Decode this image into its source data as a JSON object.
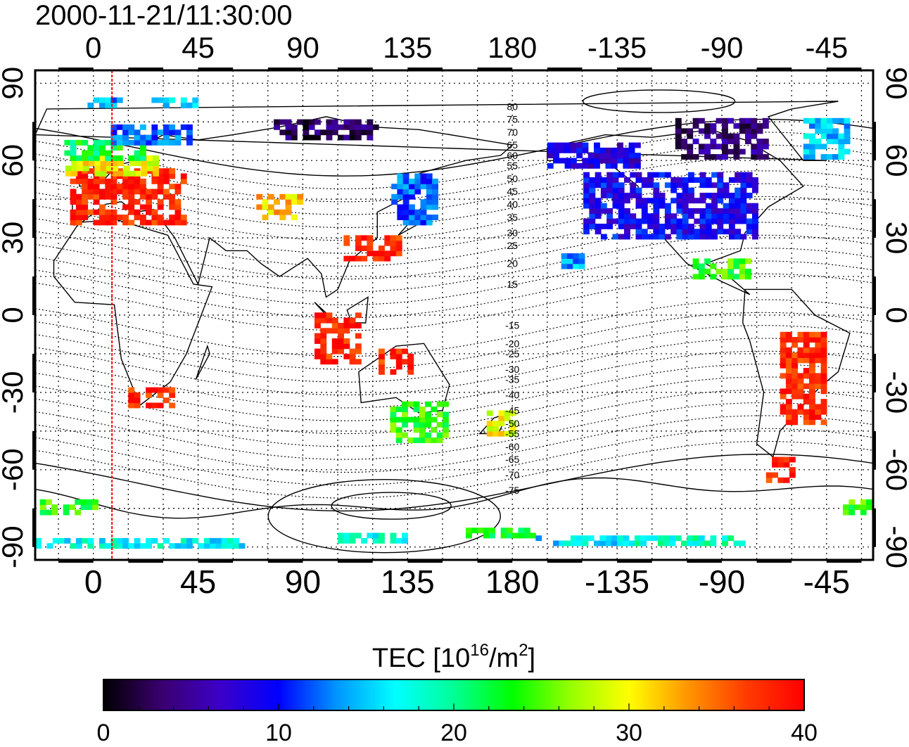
{
  "title": "2000-11-21/11:30:00",
  "map": {
    "lon_ticks": [
      "0",
      "45",
      "90",
      "135",
      "180",
      "-135",
      "-90",
      "-45"
    ],
    "lat_ticks": [
      "90",
      "60",
      "30",
      "0",
      "-30",
      "-60",
      "-90"
    ],
    "lon_range": [
      -25,
      335
    ],
    "lat_range": [
      -95,
      95
    ],
    "meridian_marker_lon": 8,
    "meridian_marker_color": "#ff0000",
    "contour_labels": [
      {
        "text": "80",
        "lat": 81
      },
      {
        "text": "75",
        "lat": 76
      },
      {
        "text": "70",
        "lat": 71
      },
      {
        "text": "65",
        "lat": 66
      },
      {
        "text": "60",
        "lat": 62
      },
      {
        "text": "55",
        "lat": 58
      },
      {
        "text": "50",
        "lat": 53
      },
      {
        "text": "45",
        "lat": 48
      },
      {
        "text": "40",
        "lat": 43
      },
      {
        "text": "35",
        "lat": 38
      },
      {
        "text": "30",
        "lat": 32
      },
      {
        "text": "25",
        "lat": 27
      },
      {
        "text": "20",
        "lat": 20
      },
      {
        "text": "15",
        "lat": 12
      },
      {
        "text": "-15",
        "lat": -4
      },
      {
        "text": "-20",
        "lat": -11
      },
      {
        "text": "-25",
        "lat": -15
      },
      {
        "text": "-30",
        "lat": -21
      },
      {
        "text": "-35",
        "lat": -25
      },
      {
        "text": "-40",
        "lat": -31
      },
      {
        "text": "-45",
        "lat": -37
      },
      {
        "text": "-50",
        "lat": -42
      },
      {
        "text": "-55",
        "lat": -46
      },
      {
        "text": "-60",
        "lat": -51
      },
      {
        "text": "-65",
        "lat": -56
      },
      {
        "text": "-70",
        "lat": -62
      },
      {
        "text": "-75",
        "lat": -68
      }
    ]
  },
  "colorbar": {
    "label_main": "TEC  [10",
    "label_sup1": "16",
    "label_mid": "/m",
    "label_sup2": "2",
    "label_end": "]",
    "min": 0,
    "max": 40,
    "tick_labels": [
      "0",
      "10",
      "20",
      "30",
      "40"
    ],
    "colors": [
      "#000000",
      "#3a006e",
      "#3c00c8",
      "#0000ff",
      "#0096ff",
      "#00ffff",
      "#00ff96",
      "#00ff00",
      "#96ff00",
      "#ffff00",
      "#ff9600",
      "#ff3c00",
      "#ff0000"
    ]
  },
  "tec_regions": [
    {
      "lon": 15,
      "lat": 46,
      "w": 50,
      "h": 22,
      "tec": 38
    },
    {
      "lon": 8,
      "lat": 58,
      "w": 40,
      "h": 8,
      "tec": 30
    },
    {
      "lon": 5,
      "lat": 64,
      "w": 35,
      "h": 8,
      "tec": 22
    },
    {
      "lon": 25,
      "lat": 70,
      "w": 35,
      "h": 8,
      "tec": 12
    },
    {
      "lon": 5,
      "lat": 82,
      "w": 15,
      "h": 3,
      "tec": 14
    },
    {
      "lon": 35,
      "lat": 82,
      "w": 20,
      "h": 3,
      "tec": 16
    },
    {
      "lon": 80,
      "lat": 42,
      "w": 20,
      "h": 10,
      "tec": 32
    },
    {
      "lon": 120,
      "lat": 26,
      "w": 25,
      "h": 10,
      "tec": 38
    },
    {
      "lon": 138,
      "lat": 45,
      "w": 20,
      "h": 20,
      "tec": 12
    },
    {
      "lon": 100,
      "lat": 72,
      "w": 45,
      "h": 8,
      "tec": 3
    },
    {
      "lon": 25,
      "lat": -32,
      "w": 20,
      "h": 8,
      "tec": 38
    },
    {
      "lon": -18,
      "lat": -75,
      "w": 40,
      "h": 5,
      "tec": 24
    },
    {
      "lon": 20,
      "lat": -89,
      "w": 90,
      "h": 3,
      "tec": 17
    },
    {
      "lon": 120,
      "lat": -87,
      "w": 30,
      "h": 3,
      "tec": 18
    },
    {
      "lon": 104,
      "lat": -9,
      "w": 18,
      "h": 20,
      "tec": 38
    },
    {
      "lon": 130,
      "lat": -18,
      "w": 15,
      "h": 10,
      "tec": 38
    },
    {
      "lon": 140,
      "lat": -42,
      "w": 25,
      "h": 15,
      "tec": 24
    },
    {
      "lon": 175,
      "lat": -42,
      "w": 12,
      "h": 10,
      "tec": 30
    },
    {
      "lon": 175,
      "lat": -85,
      "w": 30,
      "h": 3,
      "tec": 22
    },
    {
      "lon": -112,
      "lat": 42,
      "w": 75,
      "h": 25,
      "tec": 9
    },
    {
      "lon": -145,
      "lat": 62,
      "w": 40,
      "h": 10,
      "tec": 8
    },
    {
      "lon": -155,
      "lat": 21,
      "w": 8,
      "h": 6,
      "tec": 14
    },
    {
      "lon": -90,
      "lat": 18,
      "w": 25,
      "h": 8,
      "tec": 24
    },
    {
      "lon": -55,
      "lat": -25,
      "w": 20,
      "h": 35,
      "tec": 38
    },
    {
      "lon": -65,
      "lat": -60,
      "w": 12,
      "h": 10,
      "tec": 38
    },
    {
      "lon": -90,
      "lat": 68,
      "w": 40,
      "h": 15,
      "tec": 4
    },
    {
      "lon": -45,
      "lat": 68,
      "w": 20,
      "h": 15,
      "tec": 15
    },
    {
      "lon": -110,
      "lat": -88,
      "w": 60,
      "h": 3,
      "tec": 18
    },
    {
      "lon": -150,
      "lat": -88,
      "w": 40,
      "h": 3,
      "tec": 16
    }
  ]
}
